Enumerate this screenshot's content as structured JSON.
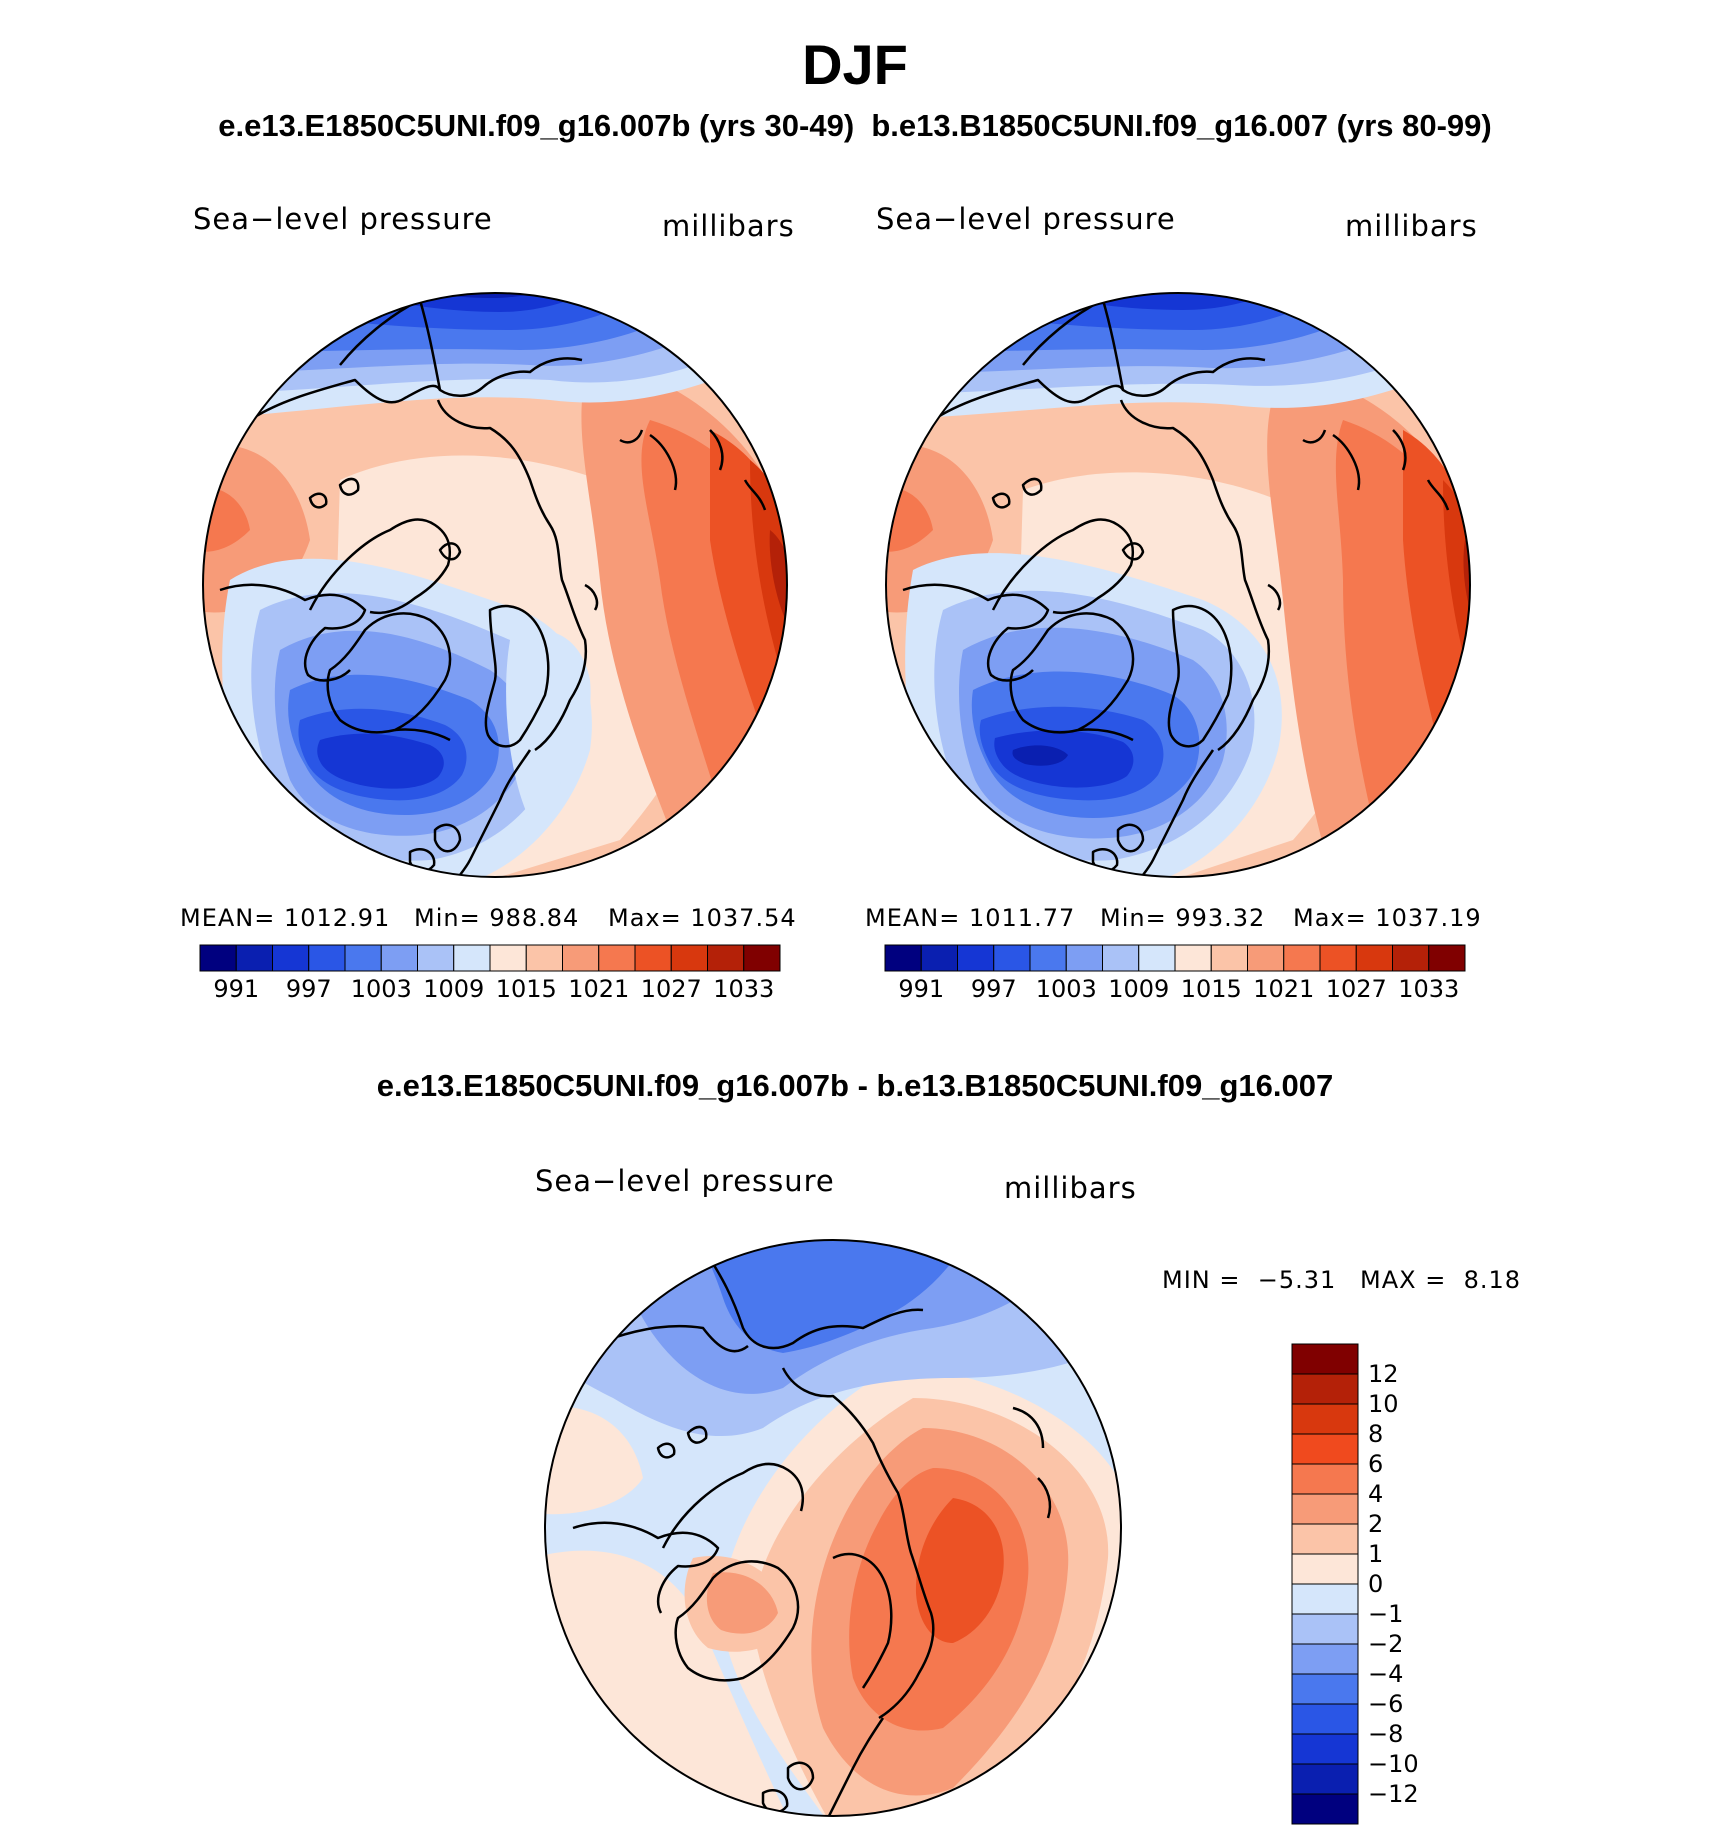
{
  "header": {
    "title": "DJF",
    "subtitle": "e.e13.E1850C5UNI.f09_g16.007b (yrs 30-49)  b.e13.B1850C5UNI.f09_g16.007 (yrs 80-99)"
  },
  "panels": {
    "left": {
      "variable": "Sea−level pressure",
      "units": "millibars",
      "stats": {
        "mean_label": "MEAN=",
        "mean": "1012.91",
        "min_label": "Min=",
        "min": "988.84",
        "max_label": "Max=",
        "max": "1037.54"
      }
    },
    "right": {
      "variable": "Sea−level pressure",
      "units": "millibars",
      "stats": {
        "mean_label": "MEAN=",
        "mean": "1011.77",
        "min_label": "Min=",
        "min": "993.32",
        "max_label": "Max=",
        "max": "1037.19"
      }
    },
    "diff": {
      "title": "e.e13.E1850C5UNI.f09_g16.007b - b.e13.B1850C5UNI.f09_g16.007",
      "variable": "Sea−level pressure",
      "units": "millibars",
      "min_label": "MIN =",
      "min": "−5.31",
      "max_label": "MAX =",
      "max": "8.18"
    }
  },
  "colorbar_abs": {
    "colors": [
      "#00007f",
      "#0a1fb0",
      "#1536d4",
      "#2a56e6",
      "#4a78ee",
      "#7d9ef3",
      "#aac2f7",
      "#d5e6fb",
      "#fde6d8",
      "#fbc4a8",
      "#f79b78",
      "#f5784f",
      "#ec5225",
      "#d8380e",
      "#b42108",
      "#800000"
    ],
    "ticks": [
      "991",
      "997",
      "1003",
      "1009",
      "1015",
      "1021",
      "1027",
      "1033"
    ]
  },
  "colorbar_diff": {
    "colors_top_down": [
      "#800000",
      "#b42108",
      "#d8380e",
      "#f04a1e",
      "#f5784f",
      "#f79b78",
      "#fbc4a8",
      "#fde6d8",
      "#d5e6fb",
      "#aac2f7",
      "#7d9ef3",
      "#4a78ee",
      "#2a56e6",
      "#1536d4",
      "#0a1fb0",
      "#00007f"
    ],
    "ticks": [
      "12",
      "10",
      "8",
      "6",
      "4",
      "2",
      "1",
      "0",
      "−1",
      "−2",
      "−4",
      "−6",
      "−8",
      "−10",
      "−12"
    ]
  },
  "chart_data": [
    {
      "type": "heatmap",
      "title": "Sea−level pressure (e.e13.E1850C5UNI.f09_g16.007b, yrs 30-49)",
      "units": "millibars",
      "levels": [
        991,
        994,
        997,
        1000,
        1003,
        1006,
        1009,
        1012,
        1015,
        1018,
        1021,
        1024,
        1027,
        1030,
        1033
      ],
      "mean": 1012.91,
      "min": 988.84,
      "max": 1037.54
    },
    {
      "type": "heatmap",
      "title": "Sea−level pressure (b.e13.B1850C5UNI.f09_g16.007, yrs 80-99)",
      "units": "millibars",
      "levels": [
        991,
        994,
        997,
        1000,
        1003,
        1006,
        1009,
        1012,
        1015,
        1018,
        1021,
        1024,
        1027,
        1030,
        1033
      ],
      "mean": 1011.77,
      "min": 993.32,
      "max": 1037.19
    },
    {
      "type": "heatmap",
      "title": "Sea−level pressure difference",
      "units": "millibars",
      "levels": [
        -12,
        -10,
        -8,
        -6,
        -4,
        -2,
        -1,
        0,
        1,
        2,
        4,
        6,
        8,
        10,
        12
      ],
      "min": -5.31,
      "max": 8.18
    }
  ]
}
